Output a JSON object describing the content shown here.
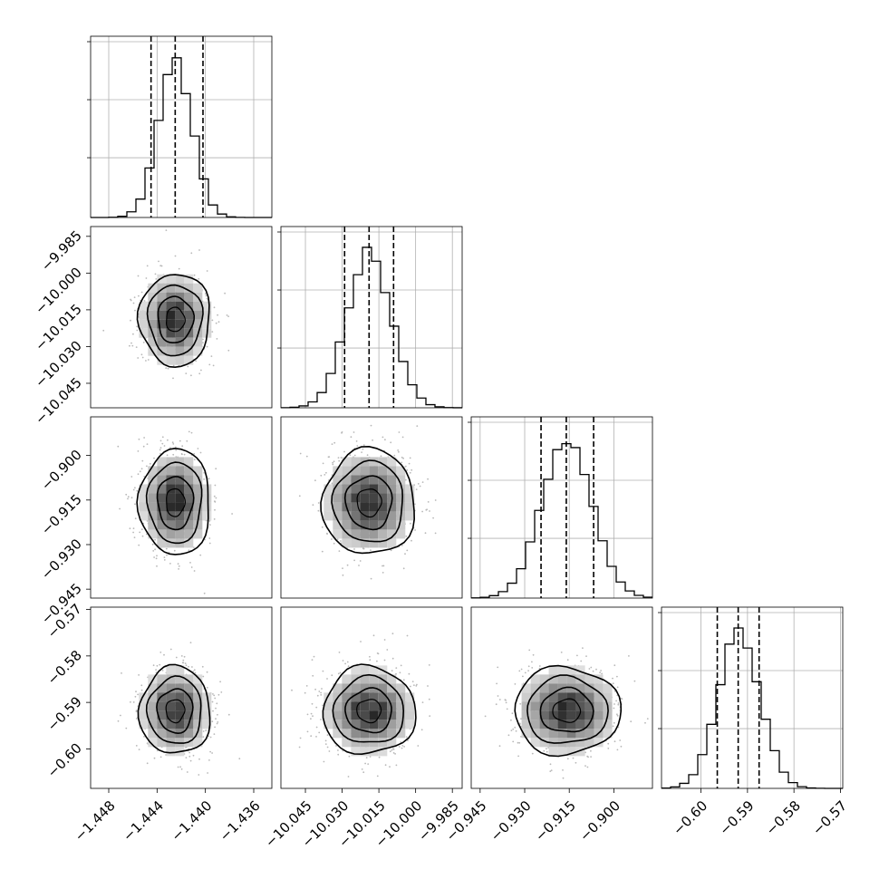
{
  "chart_data": {
    "type": "corner",
    "grid": true,
    "params": [
      {
        "range": [
          -1.4495,
          -1.4345
        ],
        "ticks": [
          -1.448,
          -1.444,
          -1.44,
          -1.436
        ],
        "tick_labels": [
          "−1.448",
          "−1.444",
          "−1.440",
          "−1.436"
        ],
        "quantiles": [
          -1.4445,
          -1.4425,
          -1.4402
        ],
        "mean": -1.4425,
        "sd": 0.0014
      },
      {
        "range": [
          -10.055,
          -9.981
        ],
        "ticks": [
          -10.045,
          -10.03,
          -10.015,
          -10.0,
          -9.985
        ],
        "tick_labels": [
          "−10.045",
          "−10.030",
          "−10.015",
          "−10.000",
          "−9.985"
        ],
        "quantiles": [
          -10.029,
          -10.019,
          -10.009
        ],
        "mean": -10.019,
        "sd": 0.009
      },
      {
        "range": [
          -0.948,
          -0.887
        ],
        "ticks": [
          -0.945,
          -0.93,
          -0.915,
          -0.9
        ],
        "tick_labels": [
          "−0.945",
          "−0.930",
          "−0.915",
          "−0.900"
        ],
        "quantiles": [
          -0.9245,
          -0.916,
          -0.9068
        ],
        "mean": -0.9158,
        "sd": 0.0085
      },
      {
        "range": [
          -0.6085,
          -0.5695
        ],
        "ticks": [
          -0.6,
          -0.59,
          -0.58,
          -0.57
        ],
        "tick_labels": [
          "−0.60",
          "−0.59",
          "−0.58",
          "−0.57"
        ],
        "quantiles": [
          -0.5965,
          -0.592,
          -0.5875
        ],
        "mean": -0.5918,
        "sd": 0.0045
      }
    ]
  }
}
